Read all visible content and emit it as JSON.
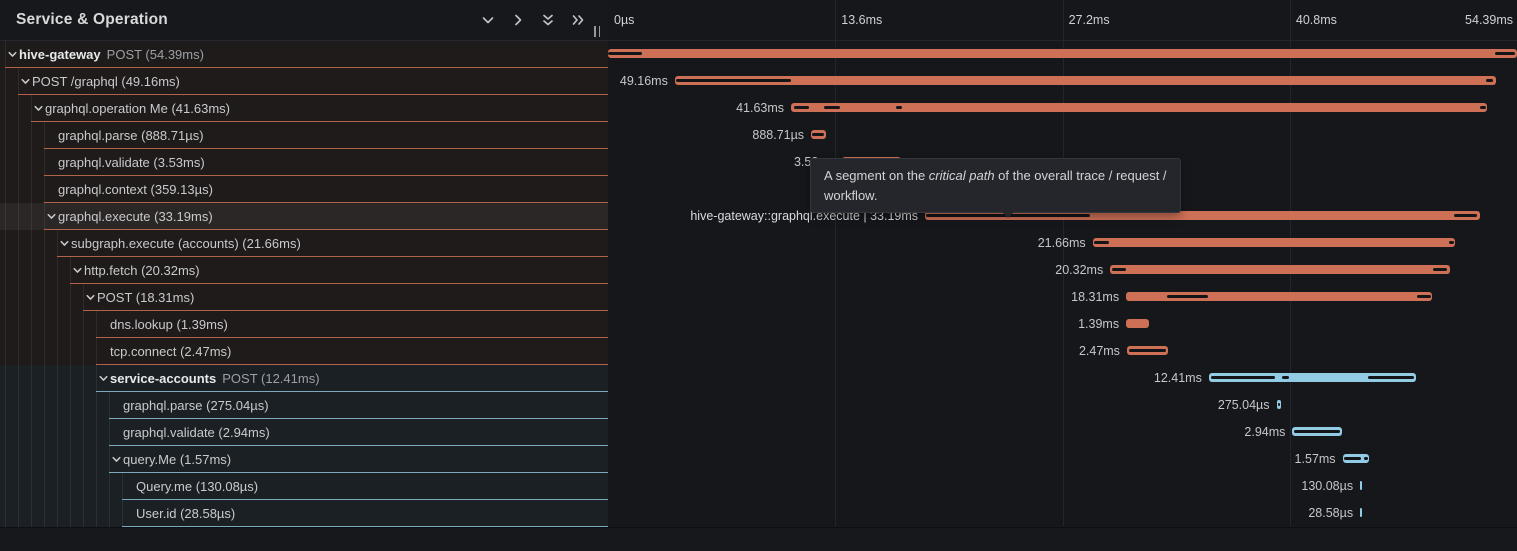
{
  "left_panel": {
    "title": "Service & Operation",
    "header_icons": [
      "chevron-down-icon",
      "chevron-right-icon",
      "double-chevron-down-icon",
      "double-chevron-right-icon"
    ]
  },
  "timeline": {
    "total_ms": 54.39,
    "ticks": [
      {
        "label": "0µs",
        "ms": 0
      },
      {
        "label": "13.6ms",
        "ms": 13.6
      },
      {
        "label": "27.2ms",
        "ms": 27.2
      },
      {
        "label": "40.8ms",
        "ms": 40.8
      },
      {
        "label": "54.39ms",
        "ms": 54.39
      }
    ]
  },
  "tooltip": {
    "prefix": "A segment on the ",
    "highlight": "critical path",
    "suffix": " of the overall trace / request /",
    "line2": "workflow."
  },
  "colors": {
    "orange": "#ce7056",
    "blue": "#92cce4",
    "critical_path": "#141519"
  },
  "rows": [
    {
      "service": "hive-gateway",
      "op": "POST",
      "duration": "(54.39ms)",
      "level": 0,
      "expandable": true,
      "color": "orange",
      "hovered": false,
      "bar": {
        "start_ms": 0,
        "duration_ms": 54.39,
        "label": "",
        "critical_path_ms": [
          [
            0,
            2.05
          ],
          [
            53.1,
            54.3
          ]
        ]
      }
    },
    {
      "service": null,
      "op": "POST /graphql",
      "duration": "(49.16ms)",
      "level": 1,
      "expandable": true,
      "color": "orange",
      "hovered": false,
      "bar": {
        "start_ms": 4.0,
        "duration_ms": 49.16,
        "label": "49.16ms",
        "critical_path_ms": [
          [
            4.05,
            10.95
          ],
          [
            52.55,
            52.95
          ]
        ]
      }
    },
    {
      "service": null,
      "op": "graphql.operation Me",
      "duration": "(41.63ms)",
      "level": 2,
      "expandable": true,
      "color": "orange",
      "hovered": false,
      "bar": {
        "start_ms": 10.95,
        "duration_ms": 41.63,
        "label": "41.63ms",
        "critical_path_ms": [
          [
            11.1,
            12.0
          ],
          [
            12.9,
            13.9
          ],
          [
            17.25,
            17.6
          ],
          [
            52.2,
            52.55
          ]
        ]
      }
    },
    {
      "service": null,
      "op": "graphql.parse",
      "duration": "(888.71µs)",
      "level": 3,
      "expandable": false,
      "color": "orange",
      "hovered": false,
      "bar": {
        "start_ms": 12.15,
        "duration_ms": 0.88871,
        "label": "888.71µs",
        "critical_path_ms": [
          [
            12.2,
            12.93
          ]
        ]
      }
    },
    {
      "service": null,
      "op": "graphql.validate",
      "duration": "(3.53ms)",
      "level": 3,
      "expandable": false,
      "color": "orange",
      "hovered": false,
      "bar": {
        "start_ms": 14.0,
        "duration_ms": 3.53,
        "label": "3.53ms",
        "critical_path_ms": [
          [
            14.1,
            17.45
          ]
        ]
      }
    },
    {
      "service": null,
      "op": "graphql.context",
      "duration": "(359.13µs)",
      "level": 3,
      "expandable": false,
      "color": "orange",
      "hovered": false,
      "bar": {
        "start_ms": 17.6,
        "duration_ms": 0.35913,
        "label": "359.13µs",
        "critical_path_ms": []
      }
    },
    {
      "service": null,
      "op": "graphql.execute",
      "duration": "(33.19ms)",
      "level": 3,
      "expandable": true,
      "color": "orange",
      "hovered": true,
      "bar": {
        "start_ms": 18.97,
        "duration_ms": 33.19,
        "label": "hive-gateway::graphql.execute | 33.19ms",
        "critical_path_ms": [
          [
            19.05,
            28.85
          ],
          [
            50.65,
            52.0
          ]
        ]
      }
    },
    {
      "service": null,
      "op": "subgraph.execute (accounts)",
      "duration": "(21.66ms)",
      "level": 4,
      "expandable": true,
      "color": "orange",
      "hovered": false,
      "bar": {
        "start_ms": 29.0,
        "duration_ms": 21.66,
        "label": "21.66ms",
        "critical_path_ms": [
          [
            29.1,
            30.0
          ],
          [
            50.35,
            50.6
          ]
        ]
      }
    },
    {
      "service": null,
      "op": "http.fetch",
      "duration": "(20.32ms)",
      "level": 5,
      "expandable": true,
      "color": "orange",
      "hovered": false,
      "bar": {
        "start_ms": 30.05,
        "duration_ms": 20.32,
        "label": "20.32ms",
        "critical_path_ms": [
          [
            30.15,
            31.0
          ],
          [
            49.35,
            50.2
          ]
        ]
      }
    },
    {
      "service": null,
      "op": "POST",
      "duration": "(18.31ms)",
      "level": 6,
      "expandable": true,
      "color": "orange",
      "hovered": false,
      "bar": {
        "start_ms": 31.0,
        "duration_ms": 18.31,
        "label": "18.31ms",
        "critical_path_ms": [
          [
            33.45,
            35.9
          ],
          [
            48.4,
            49.25
          ]
        ]
      }
    },
    {
      "service": null,
      "op": "dns.lookup",
      "duration": "(1.39ms)",
      "level": 7,
      "expandable": false,
      "color": "orange",
      "hovered": false,
      "bar": {
        "start_ms": 31.0,
        "duration_ms": 1.39,
        "label": "1.39ms",
        "critical_path_ms": []
      }
    },
    {
      "service": null,
      "op": "tcp.connect",
      "duration": "(2.47ms)",
      "level": 7,
      "expandable": false,
      "color": "orange",
      "hovered": false,
      "bar": {
        "start_ms": 31.05,
        "duration_ms": 2.47,
        "label": "2.47ms",
        "critical_path_ms": [
          [
            31.15,
            33.4
          ]
        ]
      }
    },
    {
      "service": "service-accounts",
      "op": "POST",
      "duration": "(12.41ms)",
      "level": 7,
      "expandable": true,
      "color": "blue",
      "hovered": false,
      "bar": {
        "start_ms": 35.95,
        "duration_ms": 12.41,
        "label": "12.41ms",
        "critical_path_ms": [
          [
            36.1,
            39.9
          ],
          [
            40.35,
            40.75
          ],
          [
            45.45,
            48.25
          ]
        ]
      }
    },
    {
      "service": null,
      "op": "graphql.parse",
      "duration": "(275.04µs)",
      "level": 8,
      "expandable": false,
      "color": "blue",
      "hovered": false,
      "bar": {
        "start_ms": 40.0,
        "duration_ms": 0.27504,
        "label": "275.04µs",
        "critical_path_ms": [
          [
            40.06,
            40.18
          ]
        ]
      }
    },
    {
      "service": null,
      "op": "graphql.validate",
      "duration": "(2.94ms)",
      "level": 8,
      "expandable": false,
      "color": "blue",
      "hovered": false,
      "bar": {
        "start_ms": 40.95,
        "duration_ms": 2.94,
        "label": "2.94ms",
        "critical_path_ms": [
          [
            41.05,
            43.8
          ]
        ]
      }
    },
    {
      "service": null,
      "op": "query.Me",
      "duration": "(1.57ms)",
      "level": 8,
      "expandable": true,
      "color": "blue",
      "hovered": false,
      "bar": {
        "start_ms": 43.95,
        "duration_ms": 1.57,
        "label": "1.57ms",
        "critical_path_ms": [
          [
            44.05,
            45.05
          ],
          [
            45.25,
            45.45
          ]
        ]
      }
    },
    {
      "service": null,
      "op": "Query.me",
      "duration": "(130.08µs)",
      "level": 9,
      "expandable": false,
      "color": "blue",
      "hovered": false,
      "bar": {
        "start_ms": 45.0,
        "duration_ms": 0.13008,
        "label": "130.08µs",
        "critical_path_ms": []
      }
    },
    {
      "service": null,
      "op": "User.id",
      "duration": "(28.58µs)",
      "level": 9,
      "expandable": false,
      "color": "blue",
      "hovered": false,
      "bar": {
        "start_ms": 45.0,
        "duration_ms": 0.02858,
        "label": "28.58µs",
        "critical_path_ms": []
      }
    }
  ]
}
